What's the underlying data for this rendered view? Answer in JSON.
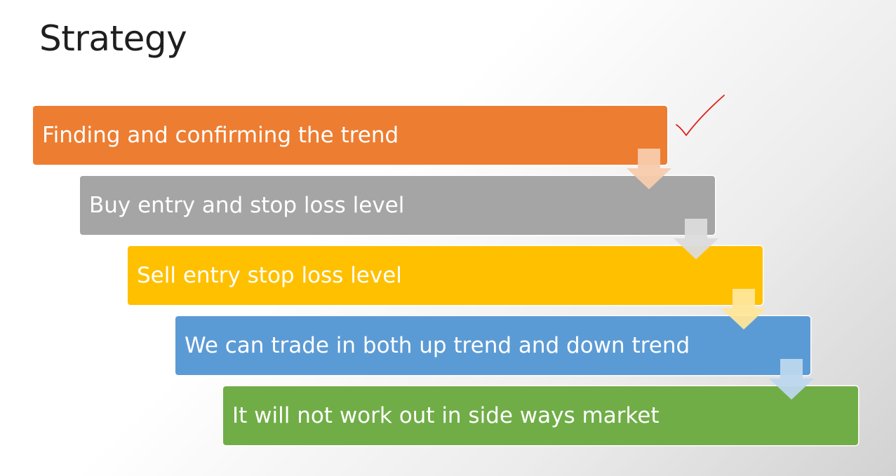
{
  "title": "Strategy",
  "steps": [
    {
      "label": "Finding and confirming the trend",
      "color": "#ED7D31",
      "arrow_color": "#F8CBAD"
    },
    {
      "label": "Buy entry and stop loss level",
      "color": "#A5A5A5",
      "arrow_color": "#DBDBDB"
    },
    {
      "label": "Sell entry stop loss level",
      "color": "#FFC000",
      "arrow_color": "#FFE699"
    },
    {
      "label": "We can trade in both up trend and down trend",
      "color": "#5B9BD5",
      "arrow_color": "#BDD7EE"
    },
    {
      "label": "It will not work out in side ways market",
      "color": "#70AD47",
      "arrow_color": null
    }
  ],
  "check_mark": {
    "icon": "check-icon",
    "color": "#E0201B"
  }
}
